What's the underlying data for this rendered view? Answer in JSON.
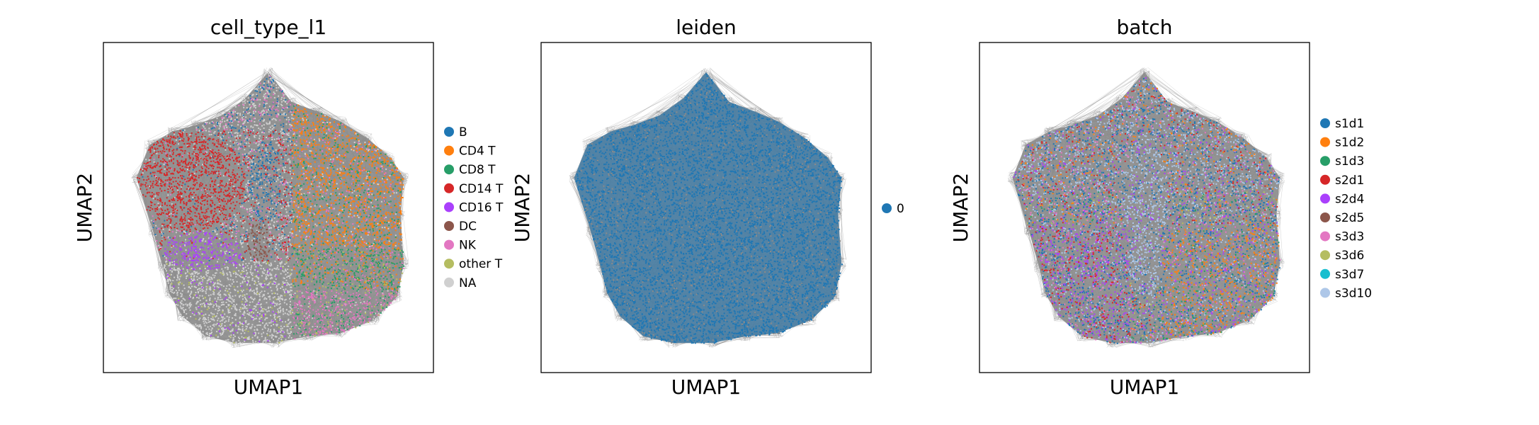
{
  "chart_data": [
    {
      "type": "scatter",
      "title": "cell_type_l1",
      "xlabel": "UMAP1",
      "ylabel": "UMAP2",
      "grid": false,
      "ticks": false,
      "legend": {
        "placement": "right",
        "entries": [
          {
            "label": "B",
            "color": "#1f77b4"
          },
          {
            "label": "CD4 T",
            "color": "#ff7f0e"
          },
          {
            "label": "CD8 T",
            "color": "#279e68"
          },
          {
            "label": "CD14 T",
            "color": "#d62728"
          },
          {
            "label": "CD16 T",
            "color": "#aa40fc"
          },
          {
            "label": "DC",
            "color": "#8c564b"
          },
          {
            "label": "NK",
            "color": "#e377c2"
          },
          {
            "label": "other T",
            "color": "#b5bd61"
          },
          {
            "label": "NA",
            "color": "#d0d0d0"
          }
        ]
      }
    },
    {
      "type": "scatter",
      "title": "leiden",
      "xlabel": "UMAP1",
      "ylabel": "UMAP2",
      "grid": false,
      "ticks": false,
      "legend": {
        "placement": "right",
        "entries": [
          {
            "label": "0",
            "color": "#1f77b4"
          }
        ]
      }
    },
    {
      "type": "scatter",
      "title": "batch",
      "xlabel": "UMAP1",
      "ylabel": "UMAP2",
      "grid": false,
      "ticks": false,
      "legend": {
        "placement": "right",
        "entries": [
          {
            "label": "s1d1",
            "color": "#1f77b4"
          },
          {
            "label": "s1d2",
            "color": "#ff7f0e"
          },
          {
            "label": "s1d3",
            "color": "#279e68"
          },
          {
            "label": "s2d1",
            "color": "#d62728"
          },
          {
            "label": "s2d4",
            "color": "#aa40fc"
          },
          {
            "label": "s2d5",
            "color": "#8c564b"
          },
          {
            "label": "s3d3",
            "color": "#e377c2"
          },
          {
            "label": "s3d6",
            "color": "#b5bd61"
          },
          {
            "label": "s3d7",
            "color": "#17becf"
          },
          {
            "label": "s3d10",
            "color": "#aec7e8"
          }
        ]
      }
    }
  ]
}
